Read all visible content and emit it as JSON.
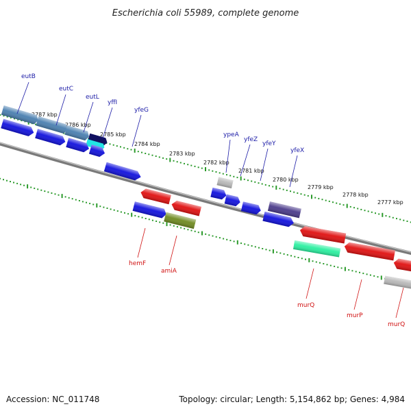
{
  "title": "Escherichia coli 55989, complete genome",
  "footer": {
    "accession": "Accession: NC_011748",
    "summary": "Topology: circular; Length: 5,154,862 bp; Genes: 4,984"
  },
  "colors": {
    "backbone": "#7a7a7a",
    "tick_green": "#2a9a2a",
    "label_top": "#1a1aa6",
    "label_bottom": "#d01010",
    "gene_blue": "#1111dd",
    "gene_steel": "#4a7fb0",
    "gene_red": "#e01010",
    "gene_cyan": "#22e5e5",
    "gene_navy": "#101060",
    "gene_gray": "#b8b8b8",
    "gene_olive": "#6f8a20",
    "gene_purple": "#4a3a8a",
    "gene_mint": "#2af0a0"
  },
  "kbp_labels": [
    "2787 kbp",
    "2786 kbp",
    "2785 kbp",
    "2784 kbp",
    "2783 kbp",
    "2782 kbp",
    "2781 kbp",
    "2780 kbp",
    "2779 kbp",
    "2778 kbp",
    "2777 kbp"
  ],
  "gene_labels_top": [
    "eutB",
    "eutC",
    "eutL",
    "yffI",
    "yfeG",
    "ypeA",
    "yfeZ",
    "yfeY",
    "yfeX"
  ],
  "gene_labels_bottom": [
    "hemF",
    "amiA",
    "murQ",
    "murP",
    "murQ"
  ]
}
